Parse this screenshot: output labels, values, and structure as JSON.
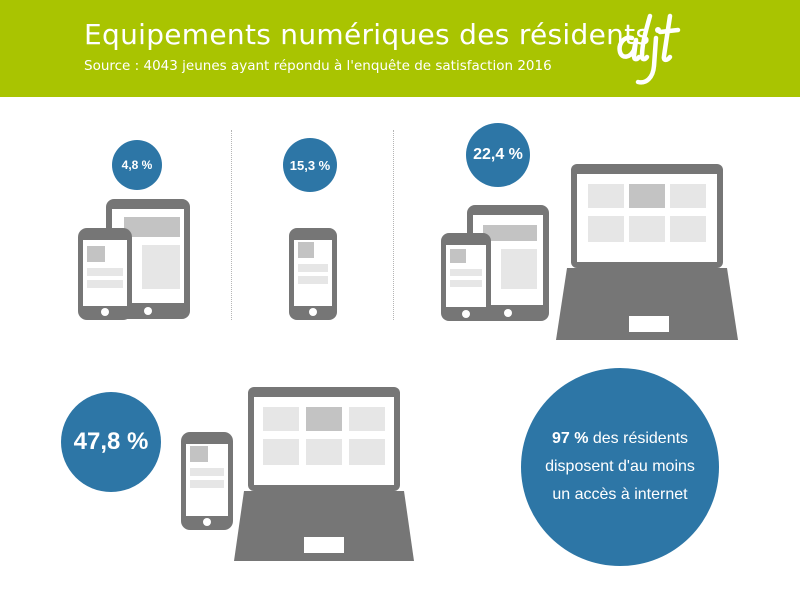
{
  "header": {
    "title": "Equipements numériques des résidents",
    "subtitle": "Source : 4043 jeunes ayant répondu à l'enquête de satisfaction 2016",
    "logo_text": "aljt",
    "background_color": "#a9c401"
  },
  "groups": [
    {
      "label": "4,8 %",
      "value": 4.8,
      "devices": [
        "smartphone-icon",
        "tablet-icon"
      ]
    },
    {
      "label": "15,3 %",
      "value": 15.3,
      "devices": [
        "smartphone-icon"
      ]
    },
    {
      "label": "22,4 %",
      "value": 22.4,
      "devices": [
        "smartphone-icon",
        "tablet-icon",
        "laptop-icon"
      ]
    },
    {
      "label": "47,8 %",
      "value": 47.8,
      "devices": [
        "smartphone-icon",
        "laptop-icon"
      ]
    }
  ],
  "internet": {
    "value_label": "97 %",
    "line1_rest": " des résidents",
    "line2": "disposent d'au moins",
    "line3": "un accès à internet"
  },
  "colors": {
    "bubble": "#2d76a6",
    "device": "#767676",
    "screen_light": "#e6e6e6",
    "screen_mid": "#c3c3c3"
  }
}
